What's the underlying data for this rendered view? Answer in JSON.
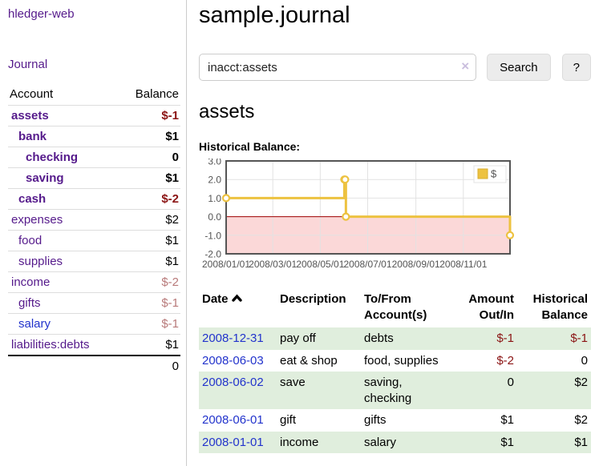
{
  "app": {
    "title": "hledger-web"
  },
  "sidebar": {
    "nav_journal": "Journal",
    "accounts_table": {
      "headers": {
        "account": "Account",
        "balance": "Balance"
      },
      "rows": [
        {
          "name": "assets",
          "balance": "$-1",
          "depth": 0,
          "bold": true,
          "balance_style": "neg",
          "link_color": "purple"
        },
        {
          "name": "bank",
          "balance": "$1",
          "depth": 1,
          "bold": true,
          "balance_style": "",
          "link_color": "purple"
        },
        {
          "name": "checking",
          "balance": "0",
          "depth": 2,
          "bold": true,
          "balance_style": "",
          "link_color": "purple"
        },
        {
          "name": "saving",
          "balance": "$1",
          "depth": 2,
          "bold": true,
          "balance_style": "",
          "link_color": "purple"
        },
        {
          "name": "cash",
          "balance": "$-2",
          "depth": 1,
          "bold": true,
          "balance_style": "neg",
          "link_color": "purple"
        },
        {
          "name": "expenses",
          "balance": "$2",
          "depth": 0,
          "bold": false,
          "balance_style": "",
          "link_color": "purple"
        },
        {
          "name": "food",
          "balance": "$1",
          "depth": 1,
          "bold": false,
          "balance_style": "",
          "link_color": "purple"
        },
        {
          "name": "supplies",
          "balance": "$1",
          "depth": 1,
          "bold": false,
          "balance_style": "",
          "link_color": "purple"
        },
        {
          "name": "income",
          "balance": "$-2",
          "depth": 0,
          "bold": false,
          "balance_style": "neg-dim",
          "link_color": "purple"
        },
        {
          "name": "gifts",
          "balance": "$-1",
          "depth": 1,
          "bold": false,
          "balance_style": "neg-dim",
          "link_color": "purple"
        },
        {
          "name": "salary",
          "balance": "$-1",
          "depth": 1,
          "bold": false,
          "balance_style": "neg-dim",
          "link_color": "blue"
        },
        {
          "name": "liabilities:debts",
          "balance": "$1",
          "depth": 0,
          "bold": false,
          "balance_style": "",
          "link_color": "purple"
        }
      ],
      "total": "0"
    }
  },
  "main": {
    "title": "sample.journal",
    "search": {
      "value": "inacct:assets",
      "button": "Search",
      "help_button": "?"
    },
    "account_heading": "assets",
    "chart_label": "Historical Balance:"
  },
  "icons": {
    "clear_search": "×",
    "date_sort": "chevron-up",
    "legend_swatch": "square"
  },
  "chart_data": {
    "type": "line",
    "title": "Historical Balance",
    "step": true,
    "series": [
      {
        "name": "$",
        "points": [
          [
            "2008-01-01",
            1
          ],
          [
            "2008-06-01",
            2
          ],
          [
            "2008-06-02",
            2
          ],
          [
            "2008-06-03",
            0
          ],
          [
            "2008-12-31",
            -1
          ]
        ]
      }
    ],
    "x_ticks": [
      "2008/01/01",
      "2008/03/01",
      "2008/05/01",
      "2008/07/01",
      "2008/09/01",
      "2008/11/01"
    ],
    "y_ticks": [
      3.0,
      2.0,
      1.0,
      0.0,
      -1.0,
      -2.0
    ],
    "xlim": [
      "2008-01-01",
      "2008-12-31"
    ],
    "ylim": [
      -2,
      3
    ],
    "grid": true,
    "legend_position": "top-right",
    "negative_region_shaded": true
  },
  "transactions": {
    "headers": {
      "date": "Date",
      "description": "Description",
      "accounts": "To/From Account(s)",
      "amount": "Amount Out/In",
      "balance": "Historical Balance"
    },
    "rows": [
      {
        "date": "2008-12-31",
        "description": "pay off",
        "accounts": "debts",
        "amount": "$-1",
        "balance": "$-1"
      },
      {
        "date": "2008-06-03",
        "description": "eat & shop",
        "accounts": "food, supplies",
        "amount": "$-2",
        "balance": "0"
      },
      {
        "date": "2008-06-02",
        "description": "save",
        "accounts": "saving, checking",
        "amount": "0",
        "balance": "$2"
      },
      {
        "date": "2008-06-01",
        "description": "gift",
        "accounts": "gifts",
        "amount": "$1",
        "balance": "$2"
      },
      {
        "date": "2008-01-01",
        "description": "income",
        "accounts": "salary",
        "amount": "$1",
        "balance": "$1"
      }
    ]
  },
  "colors": {
    "link_purple": "#551a8b",
    "link_blue": "#2233cc",
    "negative": "#8b1414",
    "negative_dim": "#b87a7a",
    "row_stripe_green": "#e0eedd",
    "accent_gold": "#EDC240",
    "chart_negative_bg": "#fbd8d8",
    "chart_zero_line": "#a00000",
    "chart_grid": "#e2e2e2",
    "chart_border": "#555555"
  }
}
